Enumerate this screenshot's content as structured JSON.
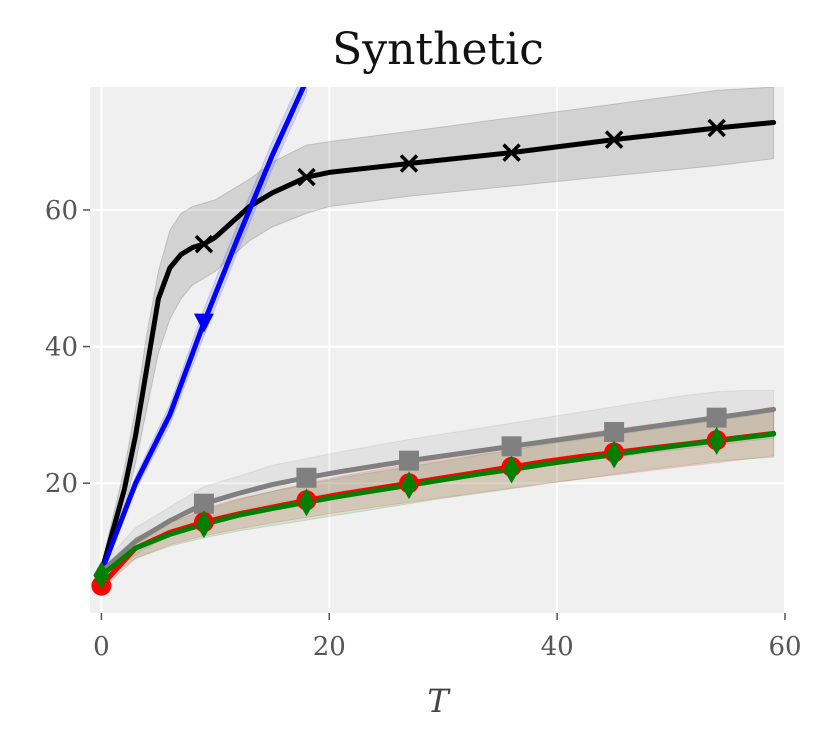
{
  "chart_data": {
    "type": "line",
    "title": "Synthetic",
    "xlabel": "T",
    "ylabel": "",
    "xlim": [
      -1,
      60
    ],
    "ylim": [
      1,
      78
    ],
    "xticks": [
      0,
      20,
      40,
      60
    ],
    "yticks": [
      20,
      40,
      60
    ],
    "grid": true,
    "legend": "none",
    "background": "#f0f0f0",
    "series": [
      {
        "color": "#000000",
        "marker": "x",
        "x": [
          0,
          1,
          2,
          3,
          4,
          5,
          6,
          7,
          8,
          9,
          10,
          11,
          12,
          13,
          15,
          18,
          20,
          27,
          36,
          45,
          54,
          59
        ],
        "y": [
          7,
          13,
          19,
          27,
          37,
          47,
          51.5,
          53.5,
          54.5,
          55,
          56,
          57.5,
          59,
          60.5,
          62.5,
          64.8,
          65.5,
          66.8,
          68.4,
          70.3,
          72,
          72.8
        ],
        "band_lower": [
          6,
          11,
          16,
          23,
          31,
          39,
          44,
          47,
          49,
          50,
          51,
          52.5,
          54,
          55.5,
          57.5,
          59.5,
          60.5,
          62,
          63.5,
          65,
          66.5,
          67.5
        ],
        "band_upper": [
          8,
          15,
          22,
          31,
          42,
          51,
          57,
          59.5,
          60.5,
          61,
          61.5,
          62.5,
          63.5,
          64.5,
          67,
          69.5,
          70,
          71.5,
          73.5,
          75.5,
          77.5,
          78
        ],
        "marker_x": [
          9,
          18,
          27,
          36,
          45,
          54
        ]
      },
      {
        "color": "#0000ff",
        "marker": "v",
        "x": [
          0,
          3,
          6,
          9,
          12,
          15,
          18
        ],
        "y": [
          7,
          20,
          30,
          43.5,
          56,
          68,
          79
        ],
        "band_lower": [
          6.5,
          19,
          28.5,
          41.5,
          54,
          66,
          77
        ],
        "band_upper": [
          7.5,
          21,
          31.5,
          45.5,
          58,
          70,
          81
        ],
        "marker_x": [
          9
        ]
      },
      {
        "color": "#808080",
        "marker": "s",
        "x": [
          0,
          3,
          6,
          9,
          12,
          15,
          18,
          21,
          24,
          27,
          30,
          33,
          36,
          39,
          42,
          45,
          48,
          51,
          54,
          57,
          59
        ],
        "y": [
          7,
          11.5,
          14.5,
          17,
          18.5,
          19.8,
          20.8,
          21.7,
          22.5,
          23.3,
          24,
          24.7,
          25.4,
          26.1,
          26.8,
          27.5,
          28.2,
          28.9,
          29.6,
          30.3,
          30.8
        ],
        "band_lower": [
          6,
          9.5,
          12.5,
          14.5,
          16,
          17,
          18,
          18.8,
          19.5,
          20.2,
          20.8,
          21.4,
          22,
          22.6,
          23.2,
          23.8,
          24.4,
          25,
          25.6,
          26.2,
          26.6
        ],
        "band_upper": [
          8,
          13.5,
          16.5,
          19.5,
          21,
          22.6,
          23.6,
          24.6,
          25.5,
          26.4,
          27.2,
          28,
          28.8,
          29.6,
          30.4,
          31.2,
          32,
          32.8,
          33.4,
          33.6,
          33.6
        ],
        "marker_x": [
          9,
          18,
          27,
          36,
          45,
          54
        ]
      },
      {
        "color": "#ff0000",
        "marker": "o",
        "x": [
          0,
          3,
          6,
          9,
          12,
          15,
          18,
          21,
          24,
          27,
          30,
          33,
          36,
          39,
          42,
          45,
          48,
          51,
          54,
          57,
          59
        ],
        "y": [
          5,
          10.5,
          12.8,
          14.3,
          15.5,
          16.5,
          17.5,
          18.4,
          19.2,
          20,
          20.8,
          21.6,
          22.4,
          23.2,
          23.9,
          24.5,
          25.1,
          25.7,
          26.3,
          26.9,
          27.3
        ],
        "band_lower": [
          4.5,
          9,
          11,
          12.3,
          13.3,
          14.2,
          15,
          15.8,
          16.5,
          17.2,
          17.9,
          18.6,
          19.3,
          20,
          20.6,
          21.2,
          21.8,
          22.4,
          23,
          23.6,
          24
        ],
        "band_upper": [
          5.5,
          12,
          14.6,
          16.3,
          17.7,
          18.8,
          20,
          21,
          21.9,
          22.8,
          23.7,
          24.6,
          25.5,
          26.4,
          27.2,
          27.9,
          28.6,
          29.2,
          29.8,
          30.2,
          30.5
        ],
        "marker_x": [
          0,
          9,
          18,
          27,
          36,
          45,
          54
        ]
      },
      {
        "color": "#008000",
        "marker": "d",
        "x": [
          0,
          3,
          6,
          9,
          12,
          15,
          18,
          21,
          24,
          27,
          30,
          33,
          36,
          39,
          42,
          45,
          48,
          51,
          54,
          57,
          59
        ],
        "y": [
          6.5,
          10.5,
          12.5,
          14,
          15.3,
          16.3,
          17.2,
          18.1,
          18.9,
          19.7,
          20.5,
          21.3,
          22,
          22.8,
          23.5,
          24.2,
          24.9,
          25.6,
          26.2,
          26.8,
          27.2
        ],
        "band_lower": [
          5.5,
          9,
          10.8,
          12,
          13,
          13.8,
          14.6,
          15.4,
          16.2,
          17,
          17.8,
          18.5,
          19.2,
          19.9,
          20.6,
          21.3,
          22,
          22.6,
          23.2,
          23.6,
          23.8
        ],
        "band_upper": [
          7.5,
          12,
          14.2,
          16,
          17.6,
          18.8,
          19.8,
          20.8,
          21.6,
          22.4,
          23.2,
          24.1,
          24.8,
          25.7,
          26.4,
          27.1,
          27.8,
          28.5,
          29.2,
          29.9,
          30.5
        ],
        "marker_x": [
          0,
          9,
          18,
          27,
          36,
          45,
          54
        ]
      }
    ]
  }
}
